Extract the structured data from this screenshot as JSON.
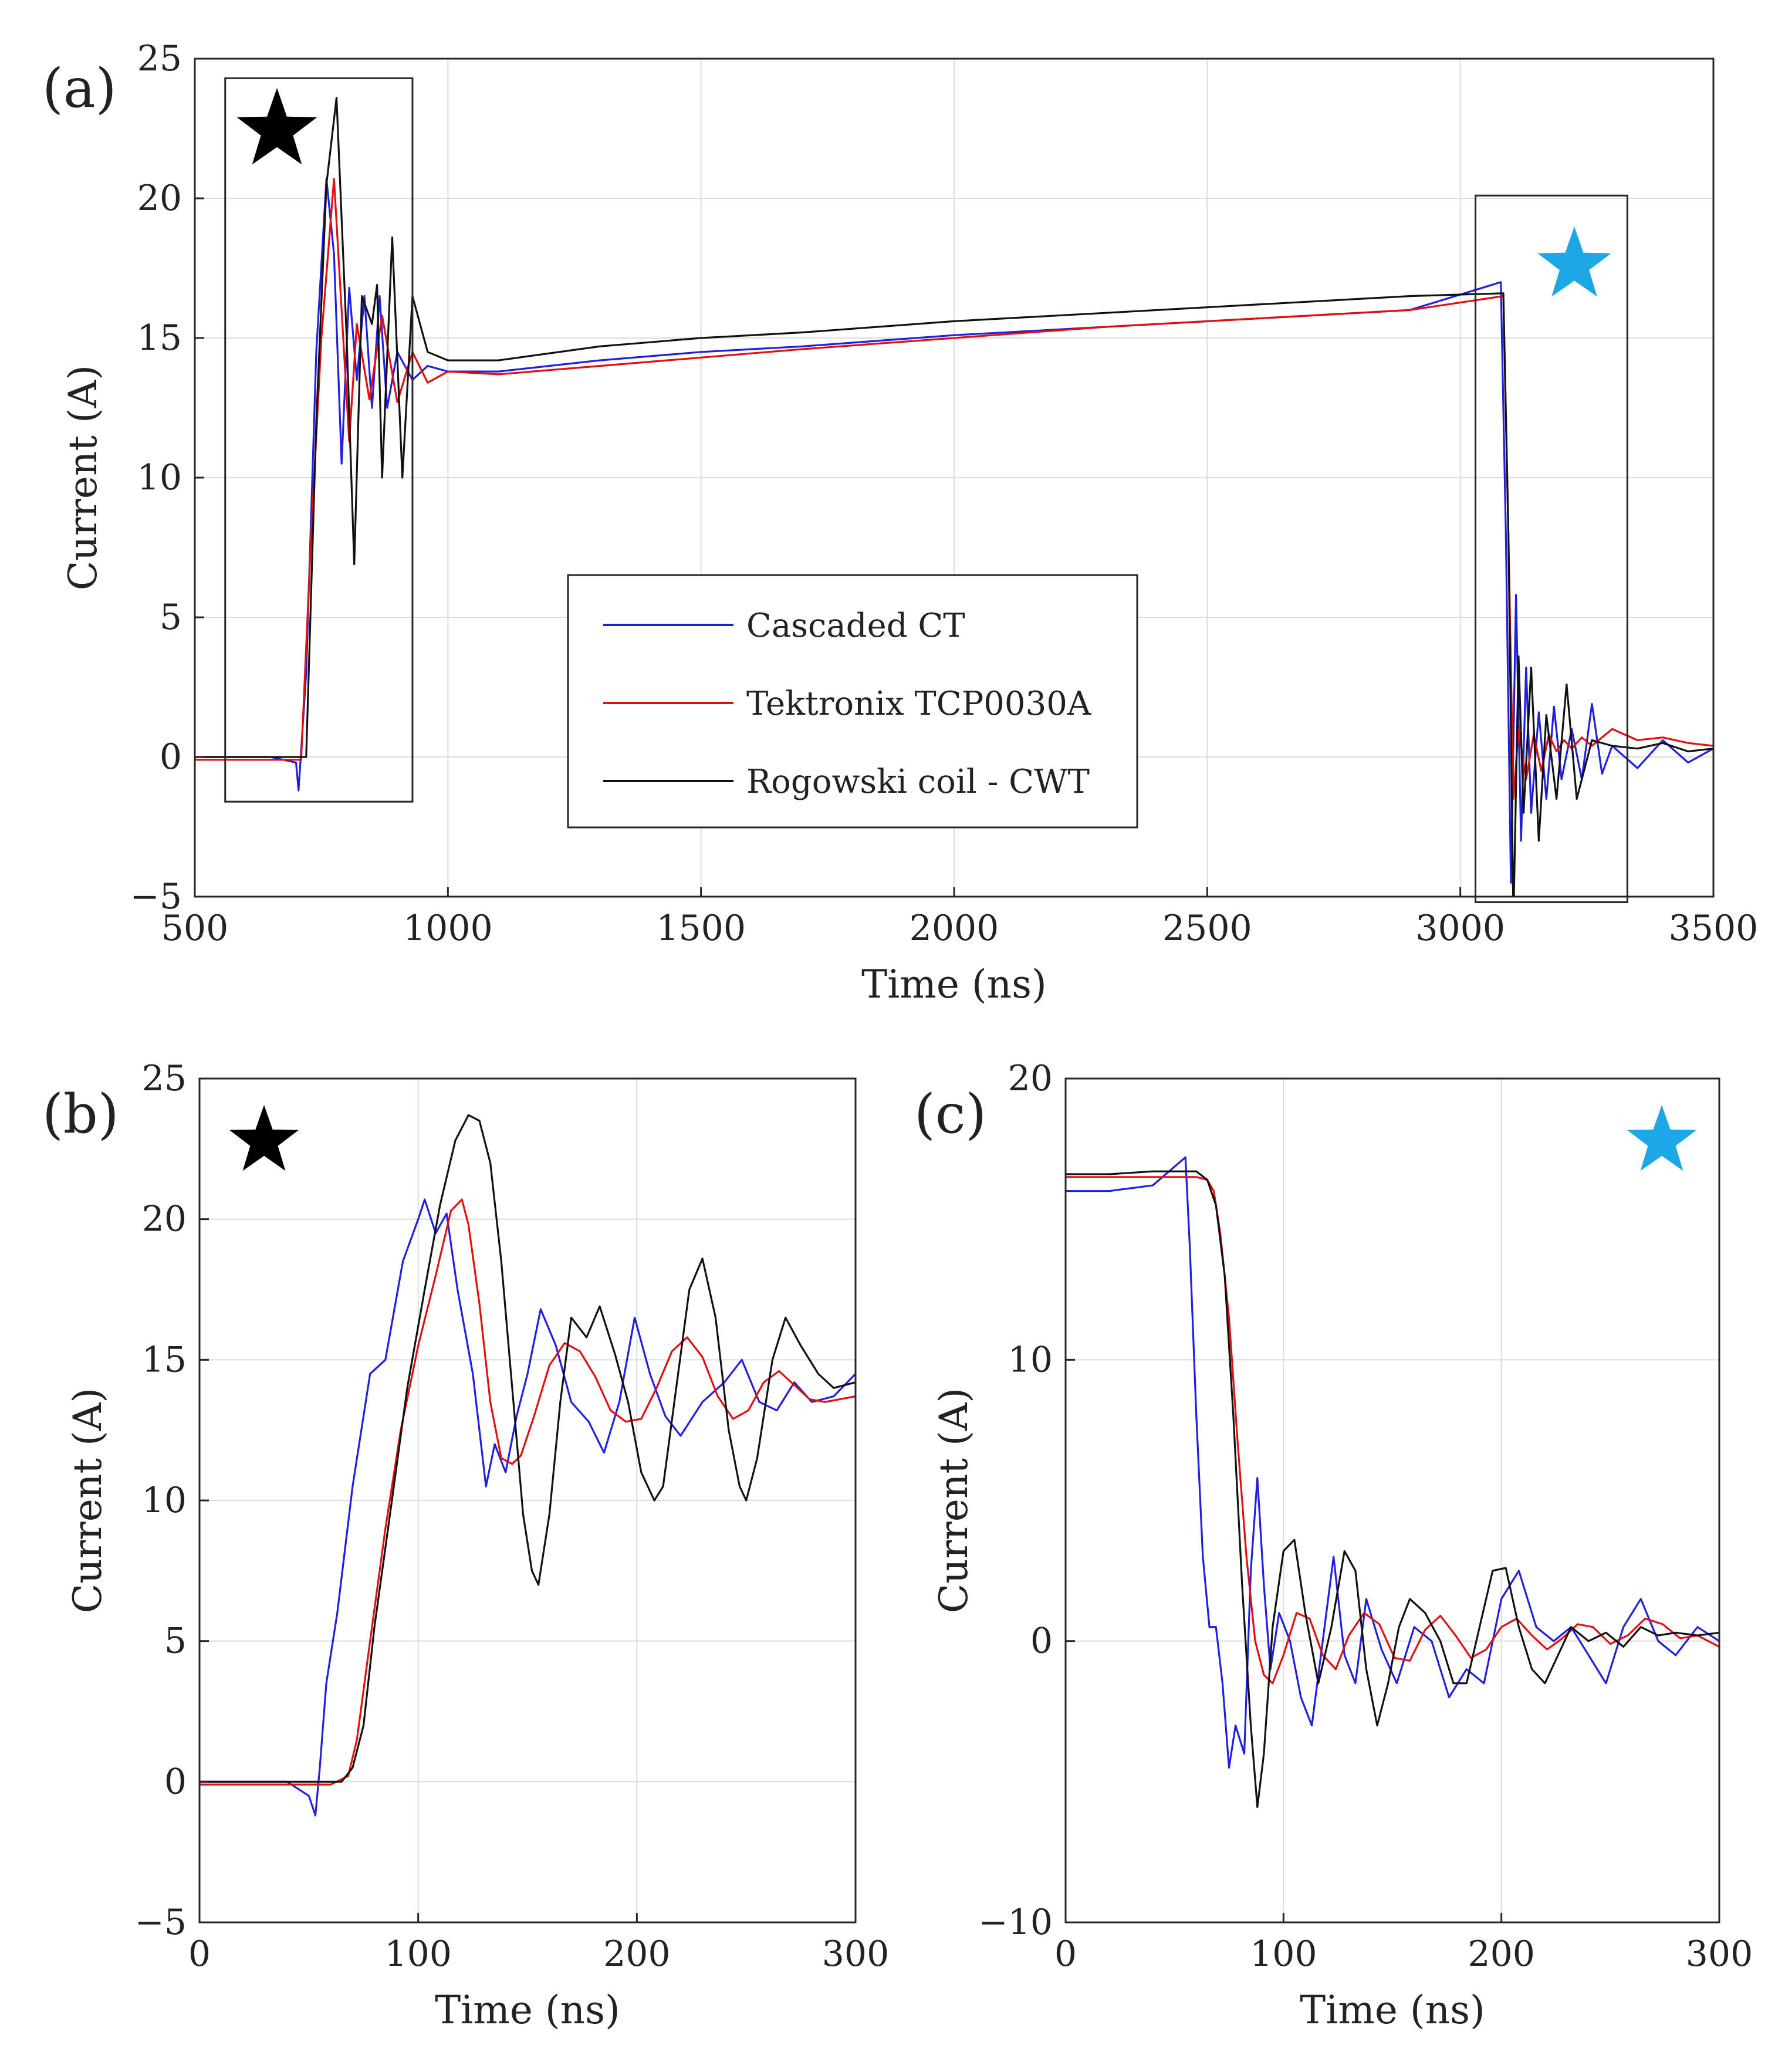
{
  "chart_data": [
    {
      "panel_label": "(a)",
      "type": "line",
      "xlabel": "Time (ns)",
      "ylabel": "Current (A)",
      "xlim": [
        500,
        3500
      ],
      "ylim": [
        -5,
        25
      ],
      "xticks": [
        "500",
        "1000",
        "1500",
        "2000",
        "2500",
        "3000",
        "3500"
      ],
      "yticks": [
        "−5",
        "0",
        "5",
        "10",
        "15",
        "20",
        "25"
      ],
      "grid": true,
      "legend": {
        "entries": [
          "Cascaded CT",
          "Tektronix TCP0030A",
          "Rogowski coil - CWT"
        ],
        "placement": "center"
      },
      "markers": [
        {
          "symbol": "★",
          "color": "#000000",
          "region_x": [
            560,
            930
          ],
          "region_y": [
            -1.6,
            24.3
          ]
        },
        {
          "symbol": "★",
          "color": "#1ea7e6",
          "region_x": [
            3030,
            3330
          ],
          "region_y": [
            -5.2,
            20.1
          ]
        }
      ],
      "series": [
        {
          "name": "Cascaded CT",
          "color": "#1f1fe0",
          "x": [
            500,
            650,
            700,
            705,
            720,
            740,
            760,
            775,
            790,
            805,
            820,
            835,
            850,
            865,
            880,
            900,
            930,
            960,
            1000,
            1100,
            1300,
            1500,
            1700,
            2000,
            2300,
            2600,
            2900,
            3080,
            3090,
            3100,
            3110,
            3120,
            3130,
            3140,
            3155,
            3170,
            3185,
            3200,
            3220,
            3240,
            3260,
            3280,
            3300,
            3350,
            3400,
            3450,
            3500
          ],
          "y": [
            0,
            0,
            -0.2,
            -1.2,
            3,
            14.5,
            20.7,
            18,
            10.5,
            16.8,
            13.5,
            16.5,
            12.5,
            16.5,
            12.5,
            14.5,
            13.5,
            14,
            13.8,
            13.8,
            14.2,
            14.5,
            14.7,
            15.1,
            15.4,
            15.7,
            16.0,
            17.0,
            8,
            -4.5,
            5.8,
            -3,
            3.2,
            -2,
            1.6,
            -1.5,
            1.8,
            -0.8,
            1.0,
            -0.8,
            1.9,
            -0.6,
            0.4,
            -0.4,
            0.6,
            -0.2,
            0.3
          ]
        },
        {
          "name": "Tektronix TCP0030A",
          "color": "#e01010",
          "x": [
            500,
            650,
            710,
            730,
            750,
            775,
            790,
            805,
            820,
            845,
            870,
            900,
            930,
            960,
            1000,
            1100,
            1300,
            1500,
            1700,
            2000,
            2300,
            2600,
            2900,
            3085,
            3095,
            3105,
            3115,
            3130,
            3145,
            3160,
            3175,
            3190,
            3205,
            3220,
            3240,
            3260,
            3300,
            3350,
            3400,
            3450,
            3500
          ],
          "y": [
            -0.1,
            -0.1,
            -0.1,
            8,
            15,
            20.7,
            16,
            11.3,
            15.5,
            12.8,
            15.8,
            12.7,
            14.5,
            13.4,
            13.8,
            13.7,
            14.0,
            14.3,
            14.6,
            15.0,
            15.4,
            15.7,
            16.0,
            16.5,
            8,
            -1.5,
            1.0,
            -0.8,
            0.8,
            -0.5,
            0.8,
            0.2,
            0.6,
            0.3,
            0.7,
            0.4,
            1.0,
            0.6,
            0.7,
            0.5,
            0.4
          ]
        },
        {
          "name": "Rogowski coil - CWT",
          "color": "#111111",
          "x": [
            500,
            650,
            720,
            740,
            760,
            780,
            800,
            815,
            830,
            850,
            860,
            870,
            890,
            910,
            930,
            960,
            1000,
            1100,
            1300,
            1500,
            1700,
            2000,
            2300,
            2600,
            2900,
            3085,
            3095,
            3105,
            3115,
            3125,
            3140,
            3155,
            3170,
            3190,
            3210,
            3230,
            3260,
            3300,
            3350,
            3400,
            3450,
            3500
          ],
          "y": [
            0,
            0,
            0,
            12,
            20.5,
            23.6,
            15,
            6.9,
            16.5,
            15.5,
            16.9,
            10,
            18.6,
            10,
            16.5,
            14.5,
            14.2,
            14.2,
            14.7,
            15.0,
            15.2,
            15.6,
            15.9,
            16.2,
            16.5,
            16.6,
            8,
            -5.9,
            3.6,
            -2,
            3.2,
            -3,
            1.5,
            -1.5,
            2.6,
            -1.5,
            0.6,
            0.4,
            0.3,
            0.5,
            0.2,
            0.3
          ]
        }
      ]
    },
    {
      "panel_label": "(b)",
      "type": "line",
      "xlabel": "Time (ns)",
      "ylabel": "Current (A)",
      "xlim": [
        0,
        300
      ],
      "ylim": [
        -5,
        25
      ],
      "xticks": [
        "0",
        "100",
        "200",
        "300"
      ],
      "yticks": [
        "−5",
        "0",
        "5",
        "10",
        "15",
        "20",
        "25"
      ],
      "grid": true,
      "markers": [
        {
          "symbol": "★",
          "color": "#000000"
        }
      ],
      "series": [
        {
          "name": "Cascaded CT",
          "color": "#1f1fe0",
          "x": [
            0,
            40,
            50,
            53,
            55,
            58,
            63,
            70,
            78,
            85,
            93,
            100,
            103,
            108,
            113,
            118,
            125,
            131,
            135,
            140,
            145,
            150,
            156,
            163,
            170,
            178,
            185,
            192,
            199,
            206,
            213,
            220,
            230,
            240,
            248,
            256,
            264,
            272,
            280,
            290,
            300
          ],
          "y": [
            0,
            0,
            -0.5,
            -1.2,
            0.5,
            3.5,
            6,
            10.5,
            14.5,
            15,
            18.5,
            20,
            20.7,
            19.5,
            20.2,
            17.5,
            14.5,
            10.5,
            12,
            11,
            13,
            14.5,
            16.8,
            15.5,
            13.5,
            12.8,
            11.7,
            13.5,
            16.5,
            14.5,
            13,
            12.3,
            13.5,
            14.2,
            15,
            13.5,
            13.2,
            14.2,
            13.5,
            13.7,
            14.5
          ]
        },
        {
          "name": "Tektronix TCP0030A",
          "color": "#e01010",
          "x": [
            0,
            40,
            60,
            68,
            72,
            78,
            85,
            92,
            100,
            108,
            115,
            120,
            123,
            128,
            133,
            138,
            143,
            147,
            153,
            160,
            167,
            174,
            181,
            188,
            195,
            202,
            209,
            216,
            223,
            230,
            237,
            244,
            251,
            258,
            265,
            272,
            279,
            286,
            293,
            300
          ],
          "y": [
            -0.1,
            -0.1,
            -0.1,
            0.2,
            1.5,
            5,
            9,
            12.5,
            15.5,
            18,
            20.3,
            20.7,
            19.8,
            17,
            13.5,
            11.5,
            11.3,
            11.6,
            13,
            14.8,
            15.6,
            15.3,
            14.4,
            13.2,
            12.8,
            12.9,
            14,
            15.3,
            15.8,
            15.1,
            13.7,
            12.9,
            13.2,
            14.2,
            14.6,
            14.1,
            13.6,
            13.5,
            13.6,
            13.7
          ]
        },
        {
          "name": "Rogowski coil - CWT",
          "color": "#111111",
          "x": [
            0,
            40,
            65,
            70,
            75,
            80,
            88,
            95,
            103,
            110,
            117,
            123,
            128,
            133,
            138,
            143,
            148,
            152,
            155,
            160,
            165,
            170,
            177,
            183,
            190,
            196,
            202,
            208,
            212,
            218,
            224,
            230,
            236,
            242,
            247,
            250,
            255,
            262,
            268,
            275,
            283,
            290,
            300
          ],
          "y": [
            0,
            0,
            0,
            0.5,
            2,
            5.5,
            10,
            14,
            17.5,
            20.5,
            22.8,
            23.7,
            23.5,
            22,
            18.5,
            14,
            9.5,
            7.5,
            7,
            9.5,
            13.5,
            16.5,
            15.8,
            16.9,
            15.2,
            13.5,
            11,
            10,
            10.5,
            14,
            17.5,
            18.6,
            16.5,
            12.5,
            10.5,
            10,
            11.5,
            15,
            16.5,
            15.5,
            14.5,
            14,
            14.2
          ]
        }
      ]
    },
    {
      "panel_label": "(c)",
      "type": "line",
      "xlabel": "Time (ns)",
      "ylabel": "Current (A)",
      "xlim": [
        0,
        300
      ],
      "ylim": [
        -10,
        20
      ],
      "xticks": [
        "0",
        "100",
        "200",
        "300"
      ],
      "yticks": [
        "−10",
        "0",
        "10",
        "20"
      ],
      "grid": true,
      "markers": [
        {
          "symbol": "★",
          "color": "#1ea7e6"
        }
      ],
      "series": [
        {
          "name": "Cascaded CT",
          "color": "#1f1fe0",
          "x": [
            0,
            20,
            40,
            55,
            57,
            60,
            63,
            66,
            69,
            72,
            75,
            78,
            82,
            85,
            88,
            91,
            94,
            98,
            103,
            108,
            113,
            118,
            123,
            128,
            133,
            138,
            145,
            152,
            160,
            168,
            176,
            184,
            192,
            200,
            208,
            216,
            224,
            232,
            240,
            248,
            256,
            264,
            272,
            280,
            290,
            300
          ],
          "y": [
            16,
            16,
            16.2,
            17.2,
            14,
            8,
            3,
            0.5,
            0.5,
            -1.5,
            -4.5,
            -3,
            -4,
            2.5,
            5.8,
            2,
            -1,
            1,
            0,
            -2,
            -3,
            0,
            3,
            -0.5,
            -1.5,
            1.5,
            -0.3,
            -1.5,
            0.5,
            0,
            -2,
            -1,
            -1.5,
            1.5,
            2.5,
            0.5,
            0,
            0.5,
            -0.5,
            -1.5,
            0.5,
            1.5,
            0,
            -0.5,
            0.5,
            0
          ]
        },
        {
          "name": "Tektronix TCP0030A",
          "color": "#e01010",
          "x": [
            0,
            20,
            40,
            60,
            65,
            68,
            71,
            75,
            79,
            83,
            87,
            91,
            95,
            100,
            106,
            112,
            118,
            124,
            130,
            137,
            144,
            151,
            158,
            165,
            172,
            179,
            186,
            193,
            200,
            207,
            214,
            221,
            228,
            235,
            242,
            250,
            258,
            266,
            274,
            282,
            290,
            300
          ],
          "y": [
            16.5,
            16.5,
            16.5,
            16.5,
            16.4,
            16,
            14.5,
            11.5,
            7,
            3,
            0,
            -1.2,
            -1.5,
            -0.5,
            1,
            0.8,
            -0.5,
            -1,
            0.2,
            1.0,
            0.6,
            -0.6,
            -0.7,
            0.4,
            0.9,
            0.2,
            -0.6,
            -0.3,
            0.5,
            0.8,
            0.2,
            -0.3,
            0.1,
            0.6,
            0.5,
            -0.1,
            0.2,
            0.8,
            0.6,
            0.1,
            0.2,
            -0.2
          ]
        },
        {
          "name": "Rogowski coil - CWT",
          "color": "#111111",
          "x": [
            0,
            20,
            40,
            60,
            65,
            69,
            73,
            77,
            81,
            85,
            88,
            91,
            95,
            100,
            105,
            110,
            116,
            122,
            128,
            133,
            138,
            143,
            148,
            153,
            158,
            165,
            172,
            178,
            184,
            190,
            196,
            202,
            208,
            214,
            220,
            226,
            232,
            240,
            248,
            256,
            264,
            272,
            280,
            290,
            300
          ],
          "y": [
            16.6,
            16.6,
            16.7,
            16.7,
            16.4,
            15.5,
            13,
            8,
            2,
            -3,
            -5.9,
            -4,
            0.5,
            3.2,
            3.6,
            1,
            -1.5,
            0.5,
            3.2,
            2.5,
            -1,
            -3,
            -1.5,
            0.5,
            1.5,
            1,
            0,
            -1.5,
            -1.5,
            0.5,
            2.5,
            2.6,
            0.5,
            -1,
            -1.5,
            -0.5,
            0.5,
            0,
            0.3,
            -0.2,
            0.5,
            0.2,
            0.3,
            0.2,
            0.3
          ]
        }
      ]
    }
  ]
}
